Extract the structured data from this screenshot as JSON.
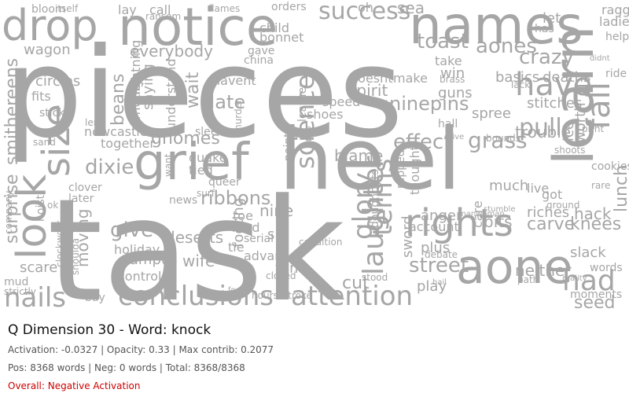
{
  "cloud": {
    "color": "#a6a6a6",
    "words": [
      "pieces",
      "task",
      "heel",
      "notice",
      "names",
      "drop",
      "look",
      "grief",
      "size",
      "learn",
      "aone",
      "rights",
      "have",
      "attention",
      "conclusions",
      "nails",
      "laughter",
      "terms",
      "glory",
      "science",
      "street",
      "effect",
      "success",
      "toast",
      "crazy",
      "aones",
      "had",
      "fall",
      "pull",
      "lunch",
      "ninepins",
      "grass",
      "nine",
      "beans",
      "date",
      "gnomes",
      "dixie",
      "ribbons",
      "smithereens",
      "surprise",
      "give",
      "deserts",
      "holiday",
      "campus",
      "wife",
      "control",
      "moving",
      "scare",
      "mud",
      "strictly",
      "bay",
      "tie",
      "sin",
      "tom",
      "closed",
      "cut",
      "stood",
      "play",
      "neither",
      "seed",
      "knees",
      "carve",
      "bits",
      "account",
      "plus",
      "debate",
      "anger",
      "riches",
      "hack",
      "slack",
      "words",
      "moments",
      "trouble",
      "stitches",
      "spree",
      "deaths",
      "basics",
      "win",
      "spirit",
      "speed",
      "shoes",
      "make",
      "doesnt",
      "let",
      "wagon",
      "circles",
      "fits",
      "stick",
      "lay",
      "call",
      "everybody",
      "wait",
      "saying",
      "lightning",
      "understand",
      "bonnet",
      "child",
      "havent",
      "china",
      "gave",
      "orders",
      "flames",
      "bloom",
      "itself",
      "ransom",
      "motion",
      "together",
      "newcastle",
      "lend",
      "sand",
      "clover",
      "later",
      "ok",
      "hoist",
      "company",
      "clockwork",
      "shoulda",
      "footing",
      "advance",
      "serial",
      "mad",
      "toe",
      "tied",
      "queer",
      "surf",
      "news",
      "want",
      "quake",
      "sleeve",
      "blame",
      "sea",
      "oh",
      "guns",
      "brass",
      "hall",
      "worth",
      "ice",
      "cookies",
      "rare",
      "live",
      "got",
      "much",
      "care",
      "sword",
      "thought",
      "rapped",
      "not",
      "doughnuts",
      "leather",
      "points",
      "trap",
      "murder",
      "help",
      "ladies",
      "ragged",
      "has",
      "take",
      "ride",
      "didnt",
      "lack",
      "drive",
      "ground",
      "print",
      "shoots",
      "bounds",
      "manwoman",
      "stumble",
      "path",
      "hail",
      "reality",
      "condition",
      "hours",
      "alpha",
      "focus",
      "stroke",
      "mile",
      "range",
      "work",
      "scarce",
      "anyone"
    ]
  },
  "info": {
    "title": "Q Dimension 30 - Word: knock",
    "stats_line": "Activation: -0.0327 | Opacity: 0.33 | Max contrib: 0.2077",
    "counts_line": "Pos: 8368 words | Neg: 0 words | Total: 8368/8368",
    "overall_label": "Overall: ",
    "overall_value": "Negative Activation",
    "overall_color": "#cc0000"
  }
}
